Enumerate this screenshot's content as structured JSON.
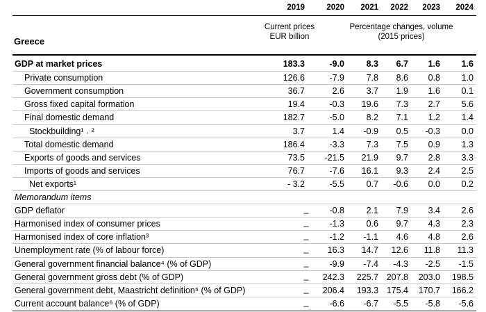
{
  "header": {
    "years": [
      "2019",
      "2020",
      "2021",
      "2022",
      "2023",
      "2024"
    ],
    "col_2019_sub": [
      "Current prices",
      "EUR billion"
    ],
    "col_rest_sub": [
      "Percentage changes, volume",
      "(2015 prices)"
    ],
    "country": "Greece"
  },
  "rows": [
    {
      "label": "GDP at market prices",
      "bold": true,
      "indent": 0,
      "v2019": "183.3",
      "vals": [
        "-9.0",
        "8.3",
        "6.7",
        "1.6",
        "1.6"
      ]
    },
    {
      "label": "Private consumption",
      "indent": 1,
      "v2019": "126.6",
      "vals": [
        "-7.9",
        "7.8",
        "8.6",
        "0.8",
        "1.0"
      ]
    },
    {
      "label": "Government consumption",
      "indent": 1,
      "v2019": "36.7",
      "vals": [
        "2.6",
        "3.7",
        "1.9",
        "1.6",
        "0.1"
      ]
    },
    {
      "label": "Gross fixed capital formation",
      "indent": 1,
      "v2019": "19.4",
      "vals": [
        "-0.3",
        "19.6",
        "7.3",
        "2.7",
        "5.6"
      ]
    },
    {
      "label": "Final domestic demand",
      "indent": 1,
      "v2019": "182.7",
      "vals": [
        "-5.0",
        "8.2",
        "7.1",
        "1.2",
        "1.4"
      ]
    },
    {
      "label": "Stockbuilding¹ ˒ ²",
      "indent": 2,
      "v2019": "3.7",
      "vals": [
        "1.4",
        "-0.9",
        "0.5",
        "-0.3",
        "0.0"
      ]
    },
    {
      "label": "Total domestic demand",
      "indent": 1,
      "v2019": "186.4",
      "vals": [
        "-3.3",
        "7.3",
        "7.5",
        "0.9",
        "1.3"
      ]
    },
    {
      "label": "Exports of goods and services",
      "indent": 1,
      "v2019": "73.5",
      "vals": [
        "-21.5",
        "21.9",
        "9.7",
        "2.8",
        "3.3"
      ]
    },
    {
      "label": "Imports of goods and services",
      "indent": 1,
      "v2019": "76.7",
      "vals": [
        "-7.6",
        "16.1",
        "9.3",
        "2.4",
        "2.5"
      ]
    },
    {
      "label": "Net exports¹",
      "indent": 2,
      "v2019": "- 3.2",
      "vals": [
        "-5.5",
        "0.7",
        "-0.6",
        "0.0",
        "0.2"
      ]
    },
    {
      "label": "Memorandum items",
      "italic": true,
      "indent": 0,
      "v2019": "",
      "vals": [
        "",
        "",
        "",
        "",
        ""
      ]
    },
    {
      "label": "GDP deflator",
      "indent": 0,
      "dash": true,
      "v2019": "_",
      "vals": [
        "-0.8",
        "2.1",
        "7.9",
        "3.4",
        "2.6"
      ]
    },
    {
      "label": "Harmonised index of consumer prices",
      "indent": 0,
      "dash": true,
      "v2019": "_",
      "vals": [
        "-1.3",
        "0.6",
        "9.7",
        "4.3",
        "2.3"
      ]
    },
    {
      "label": "Harmonised index of core inflation³",
      "indent": 0,
      "dash": true,
      "v2019": "_",
      "vals": [
        "-1.2",
        "-1.1",
        "4.6",
        "4.8",
        "2.6"
      ]
    },
    {
      "label": "Unemployment rate (% of labour force)",
      "indent": 0,
      "dash": true,
      "v2019": "_",
      "vals": [
        "16.3",
        "14.7",
        "12.6",
        "11.8",
        "11.3"
      ]
    },
    {
      "label": "General government financial balance⁴ (% of GDP)",
      "indent": 0,
      "dash": true,
      "v2019": "_",
      "vals": [
        "-9.9",
        "-7.4",
        "-4.3",
        "-2.5",
        "-1.5"
      ]
    },
    {
      "label": "General government gross debt (% of GDP)",
      "indent": 0,
      "dash": true,
      "v2019": "_",
      "vals": [
        "242.3",
        "225.7",
        "207.8",
        "203.0",
        "198.5"
      ]
    },
    {
      "label": "General government debt, Maastricht definition⁵ (% of GDP)",
      "indent": 0,
      "dash": true,
      "v2019": "_",
      "vals": [
        "206.4",
        "193.3",
        "175.4",
        "170.7",
        "166.2"
      ]
    },
    {
      "label": "Current account balance⁶ (% of GDP)",
      "indent": 0,
      "dash": true,
      "v2019": "_",
      "vals": [
        "-6.6",
        "-6.7",
        "-5.5",
        "-5.8",
        "-5.6"
      ]
    }
  ]
}
